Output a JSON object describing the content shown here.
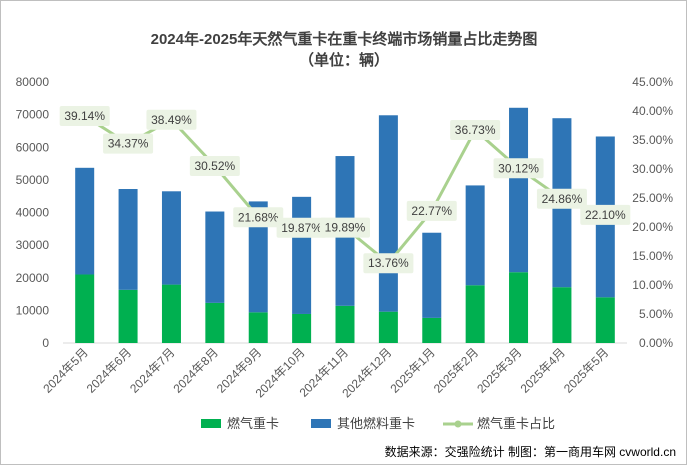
{
  "chart_data": {
    "type": "bar",
    "stacked": true,
    "title": "2024年-2025年天然气重卡在重卡终端市场销量占比走势图",
    "subtitle": "（单位：辆）",
    "categories": [
      "2024年5月",
      "2024年6月",
      "2024年7月",
      "2024年8月",
      "2024年9月",
      "2024年10月",
      "2024年11月",
      "2024年12月",
      "2025年1月",
      "2025年2月",
      "2025年3月",
      "2025年4月",
      "2025年5月"
    ],
    "series": [
      {
        "name": "燃气重卡",
        "type": "bar",
        "axis": "left",
        "color": "#00b050",
        "values": [
          21000,
          16300,
          17900,
          12300,
          9400,
          8900,
          11400,
          9600,
          7700,
          17700,
          21700,
          17100,
          14000
        ]
      },
      {
        "name": "其他燃料重卡",
        "type": "bar",
        "axis": "left",
        "color": "#2e75b6",
        "values": [
          32700,
          30900,
          28600,
          28000,
          34000,
          35900,
          45900,
          60200,
          26100,
          30600,
          50400,
          51800,
          49300
        ]
      },
      {
        "name": "燃气重卡占比",
        "type": "line",
        "axis": "right",
        "color": "#a9d18e",
        "values": [
          39.14,
          34.37,
          38.49,
          30.52,
          21.68,
          19.87,
          19.89,
          13.76,
          22.77,
          36.73,
          30.12,
          24.86,
          22.1
        ],
        "labels": [
          "39.14%",
          "34.37%",
          "38.49%",
          "30.52%",
          "21.68%",
          "19.87%",
          "19.89%",
          "13.76%",
          "22.77%",
          "36.73%",
          "30.12%",
          "24.86%",
          "22.10%"
        ]
      }
    ],
    "y_left": {
      "min": 0,
      "max": 80000,
      "ticks": [
        "0",
        "10000",
        "20000",
        "30000",
        "40000",
        "50000",
        "60000",
        "70000",
        "80000"
      ]
    },
    "y_right": {
      "min": 0,
      "max": 45,
      "ticks": [
        "0.00%",
        "5.00%",
        "10.00%",
        "15.00%",
        "20.00%",
        "25.00%",
        "30.00%",
        "35.00%",
        "40.00%",
        "45.00%"
      ]
    },
    "grid": false,
    "legend": {
      "placement": "bottom",
      "items": [
        "燃气重卡",
        "其他燃料重卡",
        "燃气重卡占比"
      ]
    }
  },
  "footer": {
    "source": "数据来源：交强险统计  制图：第一商用车网 cvworld.cn"
  }
}
